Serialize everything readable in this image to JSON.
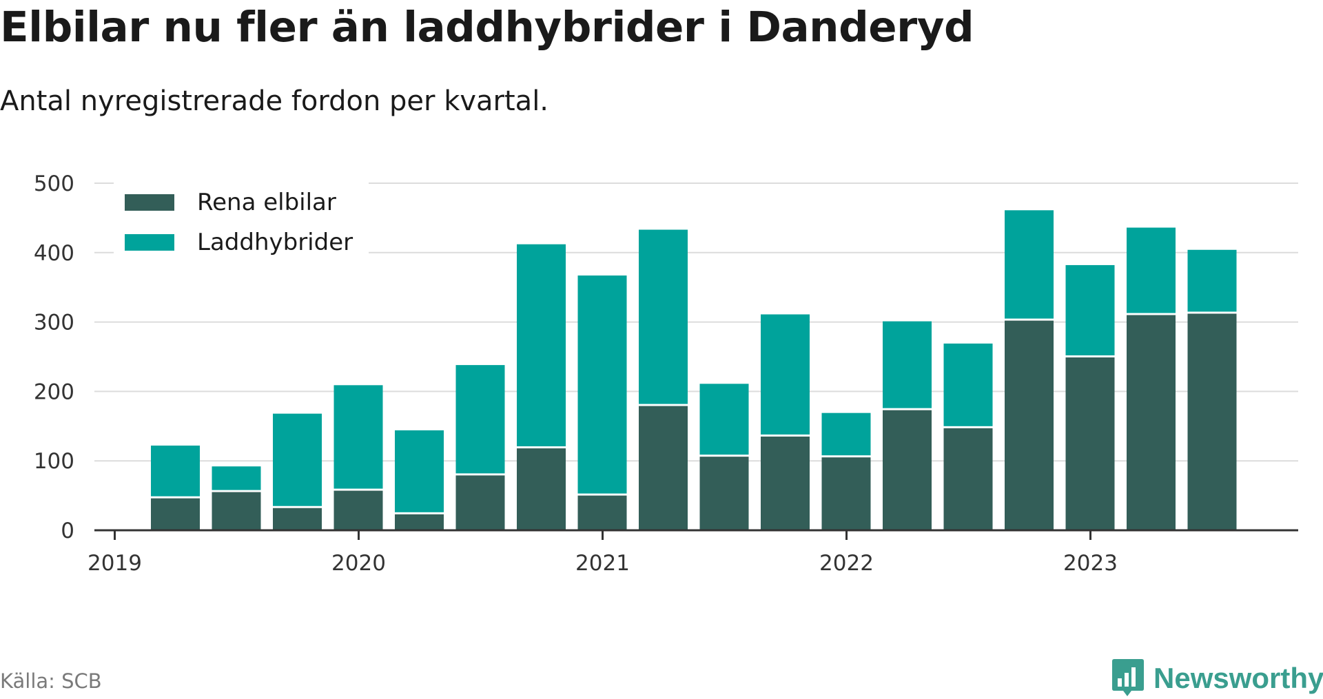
{
  "header": {
    "title": "Elbilar nu fler än laddhybrider i Danderyd",
    "subtitle": "Antal nyregistrerade fordon per kvartal."
  },
  "footer": {
    "source": "Källa: SCB",
    "brand_name": "Newsworthy",
    "brand_icon": "bar-chart-speech-bubble-icon"
  },
  "colors": {
    "elbilar": "#335e58",
    "laddhybrider": "#00a39b",
    "grid": "#dcdcdc",
    "axis": "#333333",
    "brand": "#3a9e8f"
  },
  "chart_data": {
    "type": "bar",
    "stacked": true,
    "categories": [
      "2019 Q2",
      "2019 Q3",
      "2019 Q4",
      "2020 Q1",
      "2020 Q2",
      "2020 Q3",
      "2020 Q4",
      "2021 Q1",
      "2021 Q2",
      "2021 Q3",
      "2021 Q4",
      "2022 Q1",
      "2022 Q2",
      "2022 Q3",
      "2022 Q4",
      "2023 Q1",
      "2023 Q2",
      "2023 Q3"
    ],
    "series": [
      {
        "name": "Rena elbilar",
        "values": [
          46,
          55,
          32,
          57,
          23,
          79,
          118,
          50,
          179,
          106,
          135,
          105,
          173,
          147,
          302,
          249,
          310,
          312
        ]
      },
      {
        "name": "Laddhybrider",
        "values": [
          76,
          37,
          136,
          152,
          121,
          159,
          294,
          317,
          254,
          105,
          176,
          64,
          128,
          122,
          159,
          133,
          126,
          92
        ]
      }
    ],
    "x_ticks": [
      "2019",
      "2020",
      "2021",
      "2022",
      "2023"
    ],
    "y_ticks": [
      0,
      100,
      200,
      300,
      400,
      500
    ],
    "ylim": [
      0,
      500
    ],
    "grid": true,
    "legend_position": "top-left",
    "xlabel": "",
    "ylabel": ""
  }
}
